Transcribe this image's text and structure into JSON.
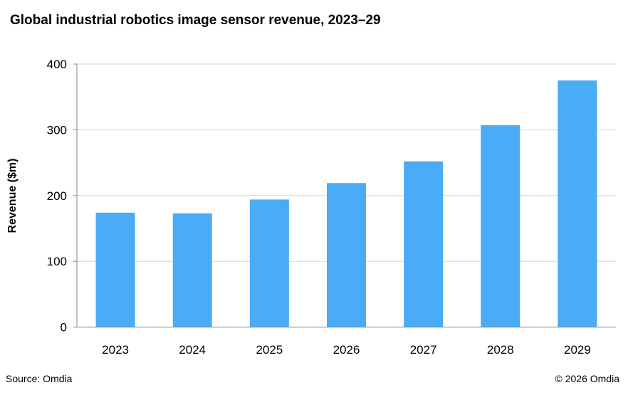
{
  "chart_data": {
    "type": "bar",
    "title": "Global industrial robotics image sensor revenue, 2023–29",
    "xlabel": "",
    "ylabel": "Revenue ($m)",
    "categories": [
      "2023",
      "2024",
      "2025",
      "2026",
      "2027",
      "2028",
      "2029"
    ],
    "values": [
      174,
      173,
      194,
      219,
      252,
      307,
      375
    ],
    "ylim": [
      0,
      400
    ],
    "yticks": [
      0,
      100,
      200,
      300,
      400
    ],
    "grid": true,
    "legend": "none",
    "bar_color": "#4aabf7"
  },
  "footer": {
    "source": "Source: Omdia",
    "copyright": "© 2026 Omdia"
  }
}
